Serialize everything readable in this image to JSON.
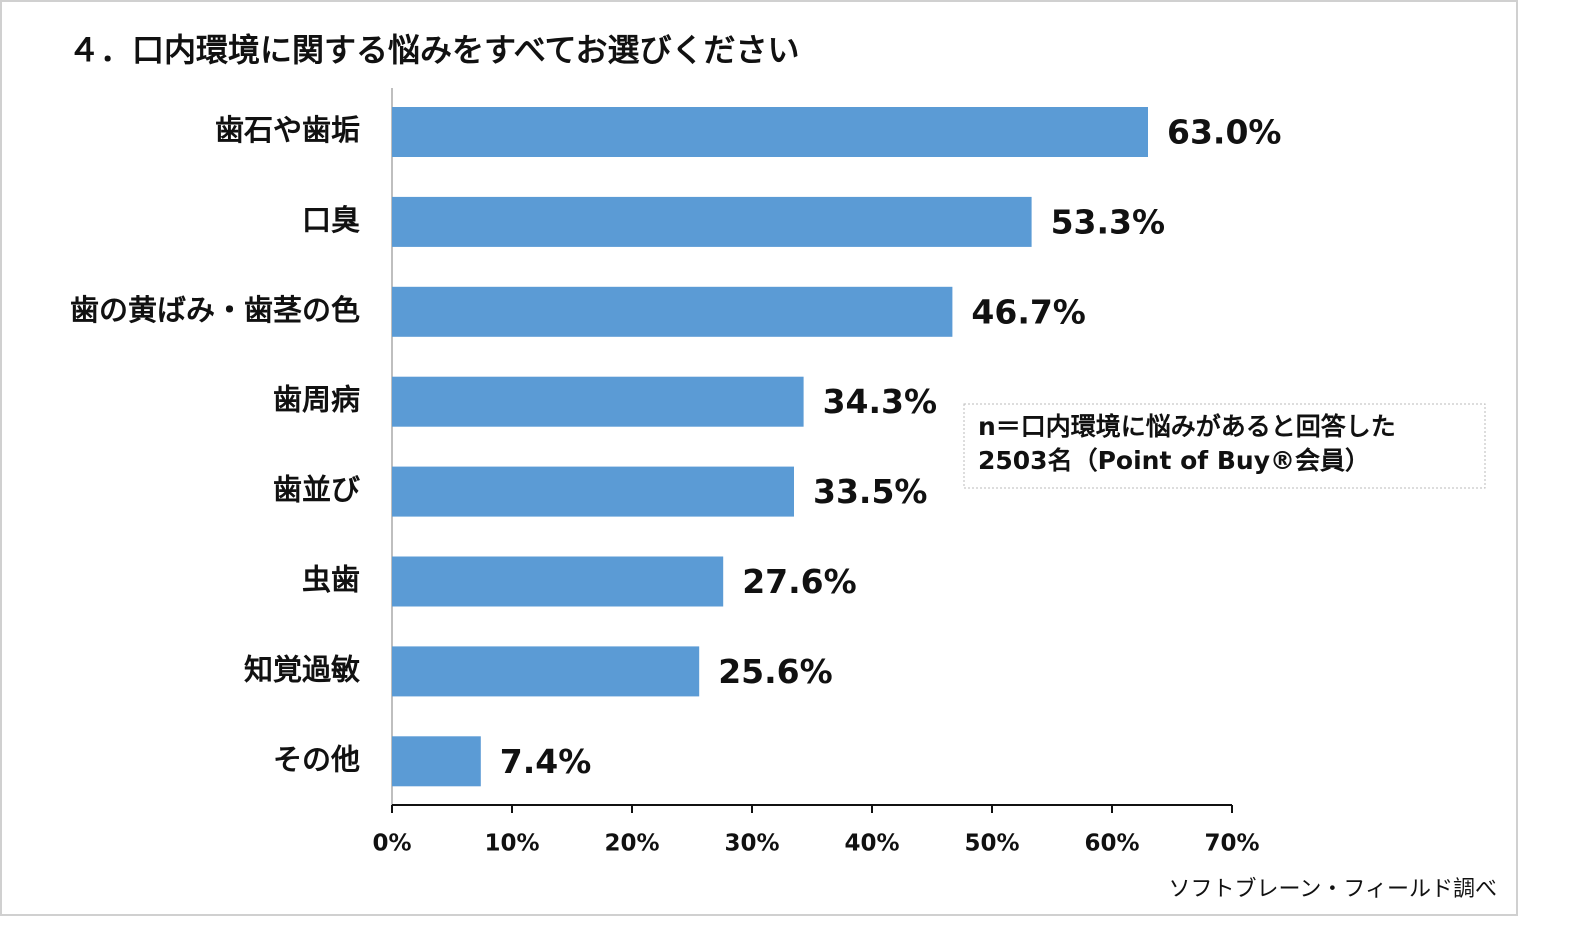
{
  "chart_data": {
    "type": "bar",
    "orientation": "horizontal",
    "title": "４．口内環境に関する悩みをすべてお選びください",
    "categories": [
      "歯石や歯垢",
      "口臭",
      "歯の黄ばみ・歯茎の色",
      "歯周病",
      "歯並び",
      "虫歯",
      "知覚過敏",
      "その他"
    ],
    "values": [
      63.0,
      53.3,
      46.7,
      34.3,
      33.5,
      27.6,
      25.6,
      7.4
    ],
    "value_labels": [
      "63.0%",
      "53.3%",
      "46.7%",
      "34.3%",
      "33.5%",
      "27.6%",
      "25.6%",
      "7.4%"
    ],
    "color": "#5b9bd5",
    "xlim": [
      0,
      70
    ],
    "xticks": [
      {
        "value": 0,
        "label": "0%"
      },
      {
        "value": 10,
        "label": "10%"
      },
      {
        "value": 20,
        "label": "20%"
      },
      {
        "value": 30,
        "label": "30%"
      },
      {
        "value": 40,
        "label": "40%"
      },
      {
        "value": 50,
        "label": "50%"
      },
      {
        "value": 60,
        "label": "60%"
      },
      {
        "value": 70,
        "label": "70%"
      }
    ],
    "grid": false,
    "note": [
      "n＝口内環境に悩みがあると回答した",
      "2503名（Point of Buy®会員）"
    ],
    "source": "ソフトブレーン・フィールド調べ"
  }
}
